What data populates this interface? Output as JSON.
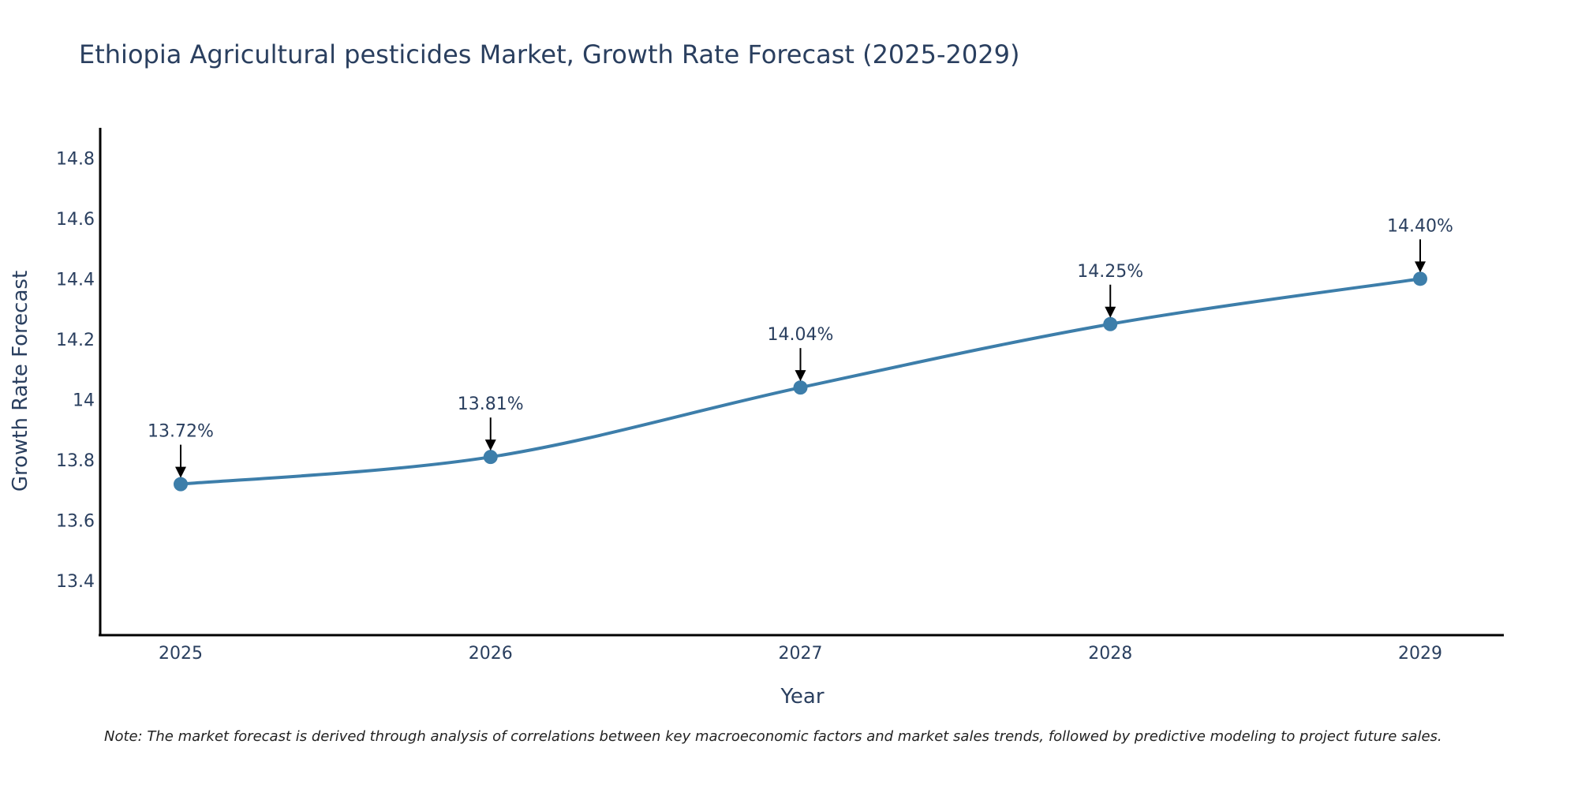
{
  "chart_data": {
    "type": "line",
    "title": "Ethiopia Agricultural pesticides Market, Growth Rate Forecast (2025-2029)",
    "xlabel": "Year",
    "ylabel": "Growth Rate Forecast",
    "categories": [
      "2025",
      "2026",
      "2027",
      "2028",
      "2029"
    ],
    "values": [
      13.72,
      13.81,
      14.04,
      14.25,
      14.4
    ],
    "annotations": [
      "13.72%",
      "13.81%",
      "14.04%",
      "14.25%",
      "14.40%"
    ],
    "ylim": [
      13.22,
      14.9
    ],
    "yticks": [
      13.4,
      13.6,
      13.8,
      14,
      14.2,
      14.4,
      14.6,
      14.8
    ],
    "ytick_labels": [
      "13.4",
      "13.6",
      "13.8",
      "14",
      "14.2",
      "14.4",
      "14.6",
      "14.8"
    ],
    "grid": false,
    "line_color": "#3d7eaa",
    "marker_color": "#3d7eaa",
    "arrow_color": "#000000",
    "note": "Note: The market forecast is derived through analysis of correlations between key macroeconomic factors and market sales trends, followed by predictive modeling to project future sales."
  }
}
